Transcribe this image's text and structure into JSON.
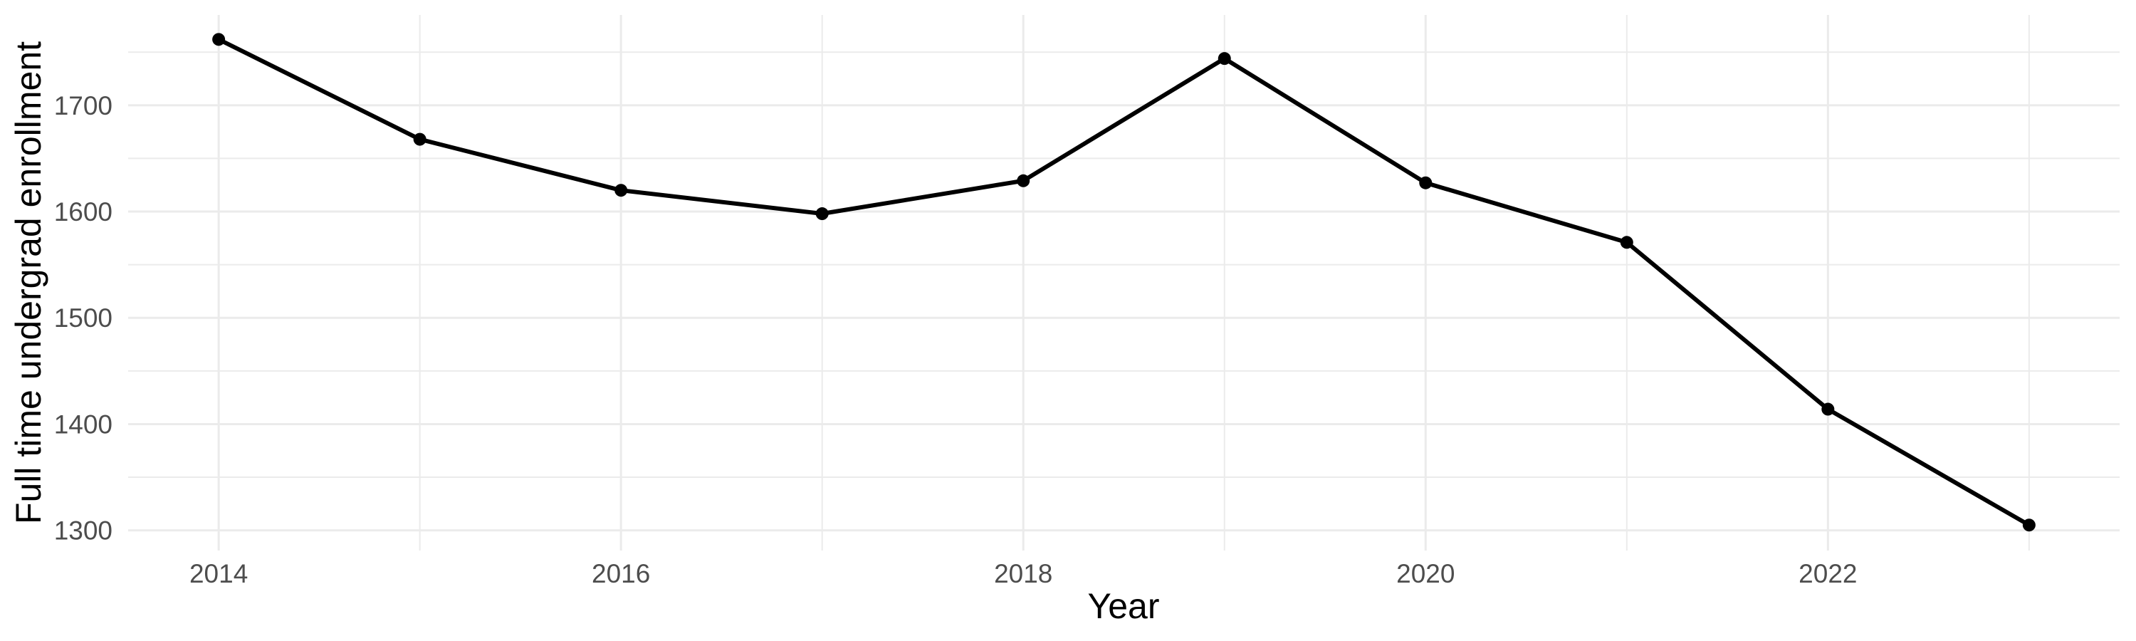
{
  "figure": {
    "y_axis_title": "Full time undergrad enrollment",
    "x_axis_title": "Year"
  },
  "chart_data": {
    "type": "line",
    "title": "",
    "xlabel": "Year",
    "ylabel": "Full time undergrad enrollment",
    "x": [
      2014,
      2015,
      2016,
      2017,
      2018,
      2019,
      2020,
      2021,
      2022,
      2023
    ],
    "series": [
      {
        "name": "Full time undergrad enrollment",
        "values": [
          1762,
          1668,
          1620,
          1598,
          1629,
          1744,
          1627,
          1571,
          1414,
          1305
        ]
      }
    ],
    "xlim": [
      2013.55,
      2023.45
    ],
    "ylim": [
      1281,
      1785
    ],
    "x_major_ticks": [
      2014,
      2016,
      2018,
      2020,
      2022
    ],
    "x_minor_ticks": [
      2015,
      2017,
      2019,
      2021,
      2023
    ],
    "y_major_ticks": [
      1300,
      1400,
      1500,
      1600,
      1700
    ],
    "y_minor_ticks": [
      1350,
      1450,
      1550,
      1650,
      1750
    ],
    "x_tick_labels": [
      "2014",
      "2016",
      "2018",
      "2020",
      "2022"
    ],
    "y_tick_labels": [
      "1300",
      "1400",
      "1500",
      "1600",
      "1700"
    ],
    "grid": true,
    "legend": false,
    "style": {
      "line_color": "#000000",
      "point_color": "#000000",
      "grid_color": "#EBEBEB",
      "tick_label_color": "#4D4D4D",
      "axis_title_color": "#000000",
      "background_color": "#FFFFFF"
    }
  }
}
